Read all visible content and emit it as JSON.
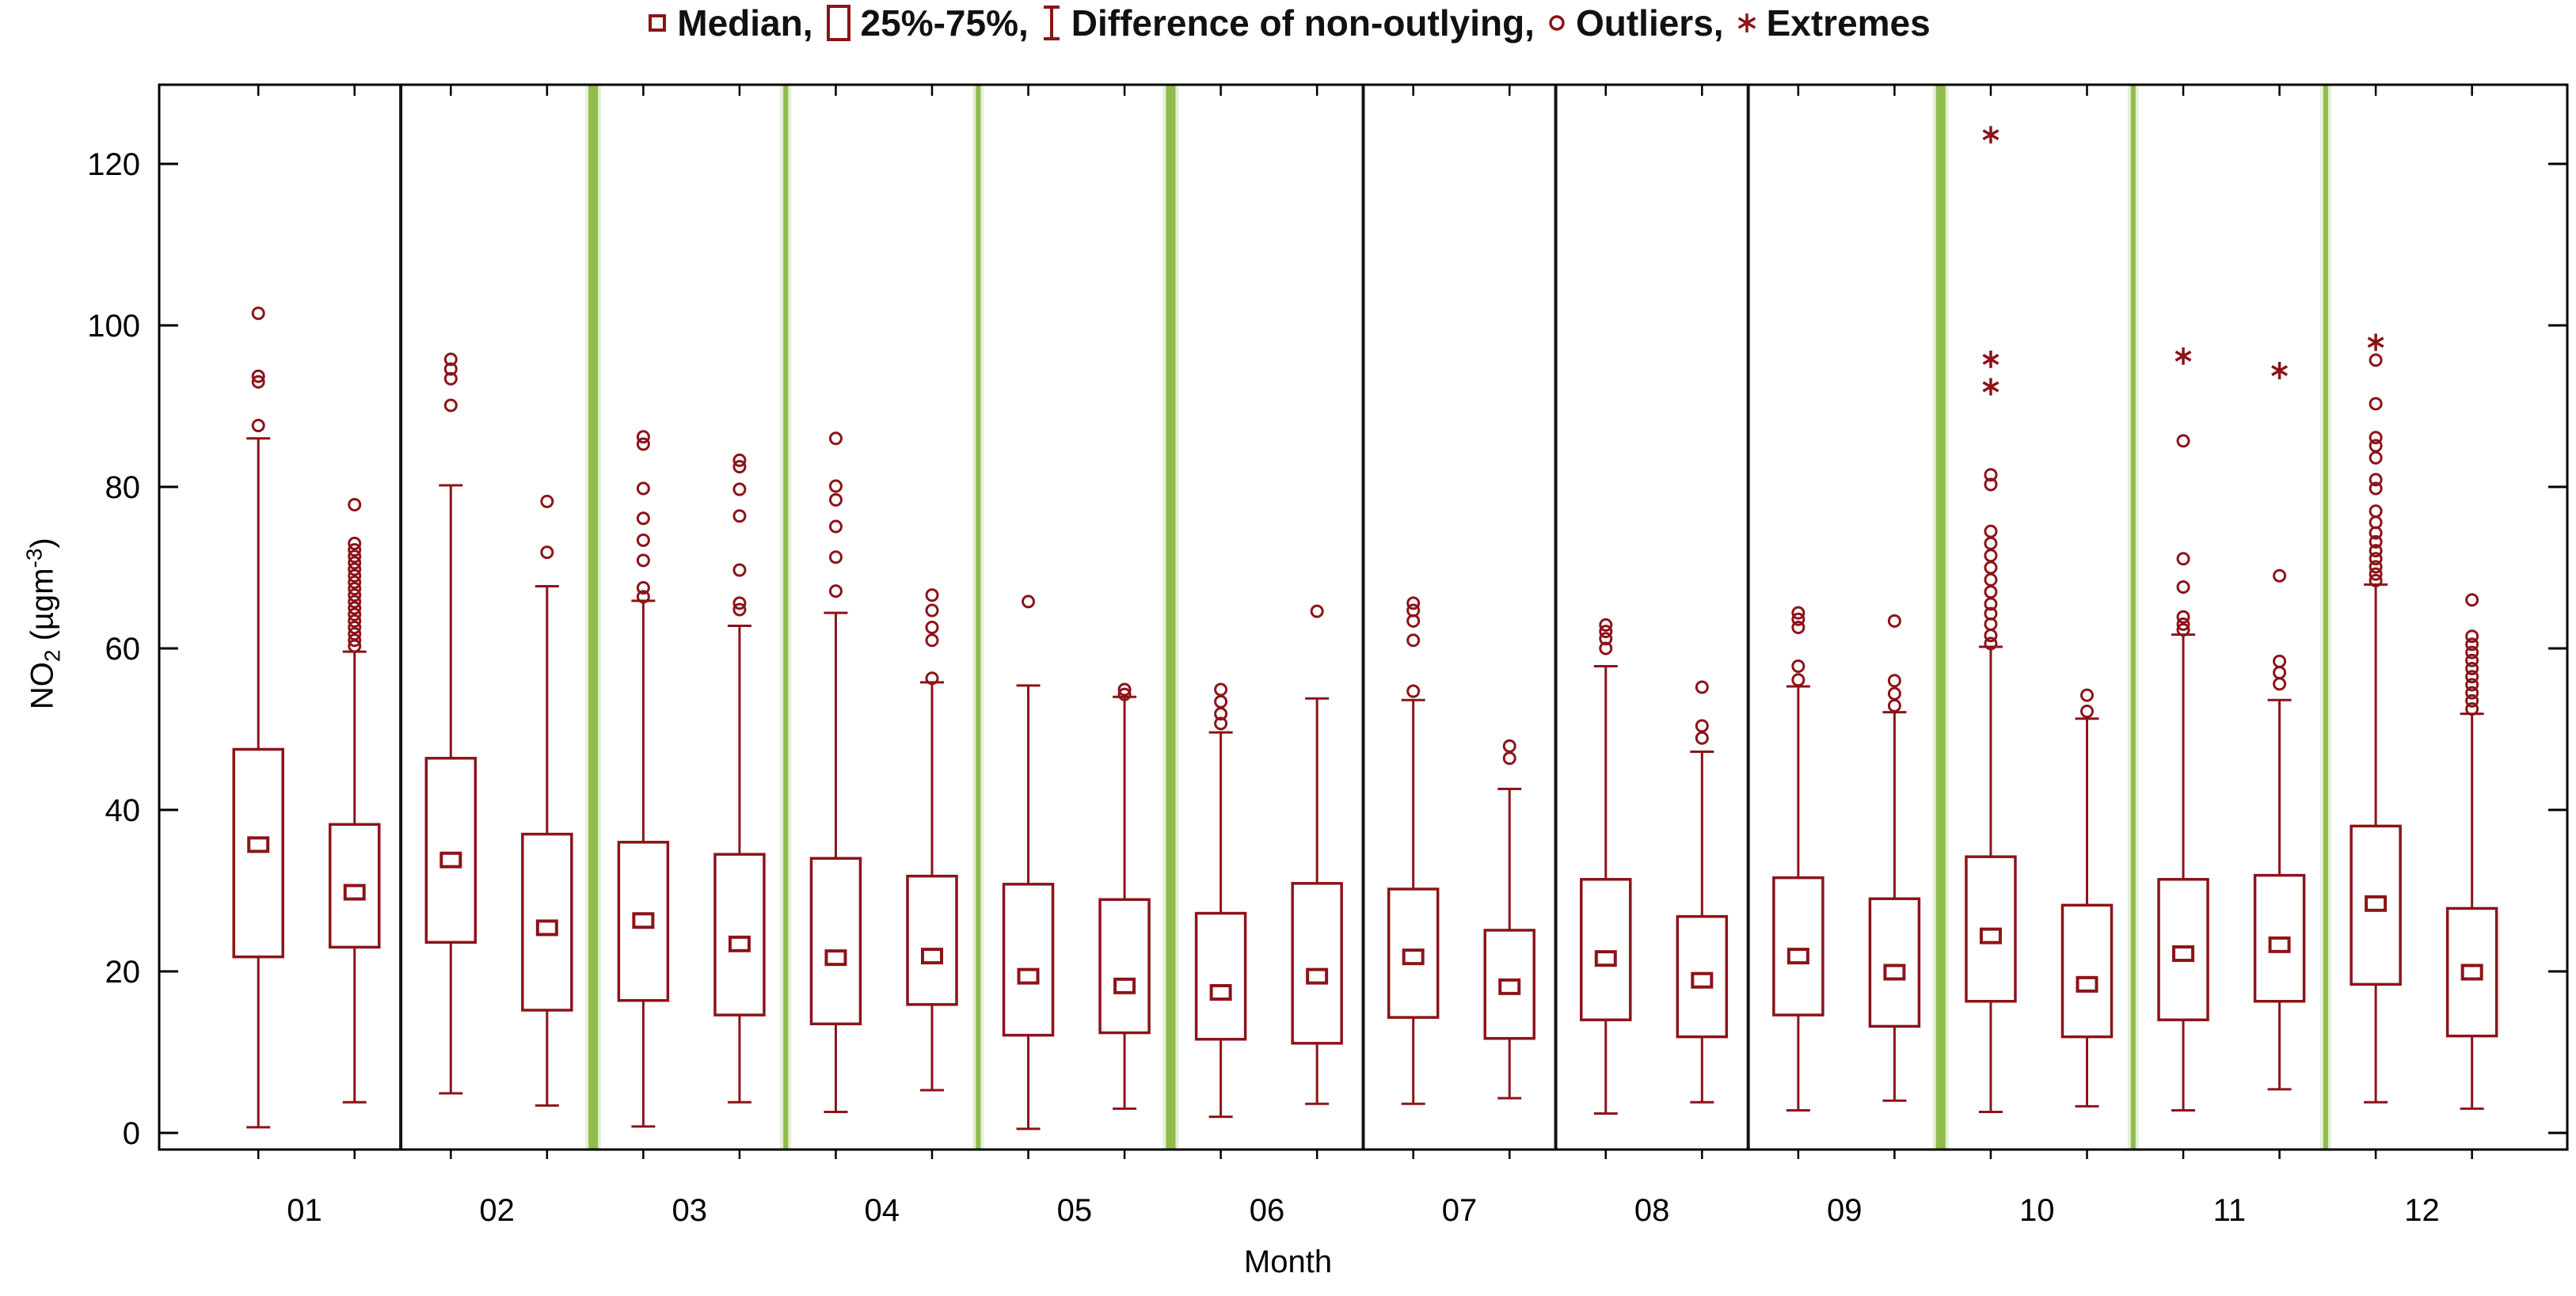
{
  "axes": {
    "y_title_html": "NO₂ (µgm⁻³)",
    "x_title": "Month"
  },
  "chart_data": {
    "type": "boxplot",
    "title": "",
    "xlabel": "Month",
    "ylabel": "NO₂ (µgm⁻³)",
    "yticks": [
      0,
      20,
      40,
      60,
      80,
      100,
      120
    ],
    "ylim": [
      -2,
      130
    ],
    "grid": false,
    "legend_position": "top-center",
    "legend_items": [
      {
        "label": "Median,",
        "symbol": "median-square"
      },
      {
        "label": "25%-75%,",
        "symbol": "iqr-box"
      },
      {
        "label": "Difference of non-outlying,",
        "symbol": "whisker-ibeam"
      },
      {
        "label": "Outliers,",
        "symbol": "outlier-circle"
      },
      {
        "label": "Extremes",
        "symbol": "extreme-asterisk"
      }
    ],
    "categories": [
      "01",
      "02",
      "03",
      "04",
      "05",
      "06",
      "07",
      "08",
      "09",
      "10",
      "11",
      "12"
    ],
    "series_per_category": 2,
    "boxes": [
      {
        "month": "01",
        "pos": "A",
        "low": 0.7,
        "q1": 21.8,
        "median": 35.7,
        "q3": 47.5,
        "high": 86.0,
        "outliers": [
          101.5,
          93.7,
          93.0,
          87.6
        ],
        "extremes": []
      },
      {
        "month": "01",
        "pos": "B",
        "low": 3.8,
        "q1": 23.0,
        "median": 29.8,
        "q3": 38.2,
        "high": 59.6,
        "outliers": [
          77.8,
          73.0,
          72.2,
          71.4,
          70.6,
          69.8,
          69.0,
          68.2,
          67.4,
          66.6,
          65.8,
          65.0,
          64.2,
          63.4,
          62.6,
          61.8,
          61.0,
          60.3
        ],
        "extremes": []
      },
      {
        "month": "02",
        "pos": "A",
        "low": 4.9,
        "q1": 23.6,
        "median": 33.8,
        "q3": 46.4,
        "high": 80.2,
        "outliers": [
          95.8,
          94.6,
          93.4,
          90.1
        ],
        "extremes": []
      },
      {
        "month": "02",
        "pos": "B",
        "low": 3.4,
        "q1": 15.2,
        "median": 25.4,
        "q3": 37.0,
        "high": 67.7,
        "outliers": [
          78.2,
          71.9
        ],
        "extremes": []
      },
      {
        "month": "03",
        "pos": "A",
        "low": 0.8,
        "q1": 16.4,
        "median": 26.3,
        "q3": 36.0,
        "high": 65.9,
        "outliers": [
          86.2,
          85.3,
          79.8,
          76.1,
          73.4,
          70.9,
          67.5,
          66.4
        ],
        "extremes": []
      },
      {
        "month": "03",
        "pos": "B",
        "low": 3.8,
        "q1": 14.6,
        "median": 23.4,
        "q3": 34.5,
        "high": 62.8,
        "outliers": [
          83.3,
          82.5,
          79.7,
          76.4,
          69.7,
          65.6,
          64.8
        ],
        "extremes": []
      },
      {
        "month": "04",
        "pos": "A",
        "low": 2.6,
        "q1": 13.5,
        "median": 21.7,
        "q3": 34.0,
        "high": 64.4,
        "outliers": [
          86.0,
          80.1,
          78.4,
          75.1,
          71.3,
          67.1
        ],
        "extremes": []
      },
      {
        "month": "04",
        "pos": "B",
        "low": 5.3,
        "q1": 15.9,
        "median": 21.9,
        "q3": 31.8,
        "high": 55.8,
        "outliers": [
          66.6,
          64.7,
          62.6,
          61.0,
          56.3
        ],
        "extremes": []
      },
      {
        "month": "05",
        "pos": "A",
        "low": 0.5,
        "q1": 12.1,
        "median": 19.4,
        "q3": 30.8,
        "high": 55.4,
        "outliers": [
          65.8
        ],
        "extremes": []
      },
      {
        "month": "05",
        "pos": "B",
        "low": 3.0,
        "q1": 12.4,
        "median": 18.2,
        "q3": 28.9,
        "high": 54.0,
        "outliers": [
          54.9,
          54.3
        ],
        "extremes": []
      },
      {
        "month": "06",
        "pos": "A",
        "low": 2.0,
        "q1": 11.6,
        "median": 17.4,
        "q3": 27.2,
        "high": 49.6,
        "outliers": [
          54.9,
          53.4,
          51.9,
          50.7
        ],
        "extremes": []
      },
      {
        "month": "06",
        "pos": "B",
        "low": 3.6,
        "q1": 11.1,
        "median": 19.4,
        "q3": 30.9,
        "high": 53.8,
        "outliers": [
          64.6
        ],
        "extremes": []
      },
      {
        "month": "07",
        "pos": "A",
        "low": 3.6,
        "q1": 14.3,
        "median": 21.8,
        "q3": 30.2,
        "high": 53.6,
        "outliers": [
          65.6,
          64.7,
          63.4,
          61.0,
          54.7
        ],
        "extremes": []
      },
      {
        "month": "07",
        "pos": "B",
        "low": 4.3,
        "q1": 11.7,
        "median": 18.1,
        "q3": 25.1,
        "high": 42.6,
        "outliers": [
          47.9,
          46.4
        ],
        "extremes": []
      },
      {
        "month": "08",
        "pos": "A",
        "low": 2.4,
        "q1": 14.0,
        "median": 21.6,
        "q3": 31.4,
        "high": 57.8,
        "outliers": [
          62.9,
          62.1,
          61.2,
          60.0
        ],
        "extremes": []
      },
      {
        "month": "08",
        "pos": "B",
        "low": 3.8,
        "q1": 11.9,
        "median": 18.9,
        "q3": 26.8,
        "high": 47.2,
        "outliers": [
          55.2,
          50.4,
          48.9
        ],
        "extremes": []
      },
      {
        "month": "09",
        "pos": "A",
        "low": 2.8,
        "q1": 14.6,
        "median": 21.9,
        "q3": 31.6,
        "high": 55.3,
        "outliers": [
          64.4,
          63.6,
          62.6,
          57.8,
          56.1
        ],
        "extremes": []
      },
      {
        "month": "09",
        "pos": "B",
        "low": 4.0,
        "q1": 13.2,
        "median": 19.9,
        "q3": 29.0,
        "high": 52.1,
        "outliers": [
          63.4,
          56.0,
          54.4,
          52.9
        ],
        "extremes": []
      },
      {
        "month": "10",
        "pos": "A",
        "low": 2.6,
        "q1": 16.3,
        "median": 24.4,
        "q3": 34.2,
        "high": 60.2,
        "outliers": [
          81.5,
          80.3,
          74.5,
          73.0,
          71.5,
          70.0,
          68.5,
          67.0,
          65.5,
          64.3,
          63.0,
          61.6,
          60.6
        ],
        "extremes": [
          123.6,
          95.8,
          92.4
        ]
      },
      {
        "month": "10",
        "pos": "B",
        "low": 3.3,
        "q1": 11.9,
        "median": 18.4,
        "q3": 28.2,
        "high": 51.3,
        "outliers": [
          54.2,
          52.2
        ],
        "extremes": []
      },
      {
        "month": "11",
        "pos": "A",
        "low": 2.8,
        "q1": 14.0,
        "median": 22.2,
        "q3": 31.4,
        "high": 61.7,
        "outliers": [
          85.7,
          71.1,
          67.6,
          63.9,
          63.0,
          62.3
        ],
        "extremes": [
          96.2
        ]
      },
      {
        "month": "11",
        "pos": "B",
        "low": 5.4,
        "q1": 16.3,
        "median": 23.3,
        "q3": 31.9,
        "high": 53.6,
        "outliers": [
          69.0,
          58.4,
          57.0,
          55.6
        ],
        "extremes": [
          94.4
        ]
      },
      {
        "month": "12",
        "pos": "A",
        "low": 3.8,
        "q1": 18.4,
        "median": 28.4,
        "q3": 38.0,
        "high": 67.9,
        "outliers": [
          95.7,
          90.3,
          86.1,
          85.1,
          83.6,
          80.9,
          79.8,
          77.0,
          75.6,
          74.3,
          73.2,
          72.1,
          71.1,
          70.1,
          69.2,
          68.4
        ],
        "extremes": [
          97.9
        ]
      },
      {
        "month": "12",
        "pos": "B",
        "low": 3.0,
        "q1": 12.0,
        "median": 19.9,
        "q3": 27.8,
        "high": 51.9,
        "outliers": [
          66.0,
          61.5,
          60.5,
          59.5,
          58.5,
          57.5,
          56.5,
          55.5,
          54.5,
          53.5,
          52.5
        ],
        "extremes": []
      }
    ],
    "separators": [
      {
        "after": "01",
        "color": "black",
        "weight": "thin"
      },
      {
        "after": "02",
        "color": "green",
        "weight": "thick"
      },
      {
        "after": "03",
        "color": "green",
        "weight": "thin"
      },
      {
        "after": "04",
        "color": "green",
        "weight": "thin"
      },
      {
        "after": "05",
        "color": "green",
        "weight": "thick"
      },
      {
        "after": "06",
        "color": "black",
        "weight": "thin"
      },
      {
        "after": "07",
        "color": "black",
        "weight": "thin"
      },
      {
        "after": "08",
        "color": "black",
        "weight": "thin"
      },
      {
        "after": "09",
        "color": "green",
        "weight": "thick"
      },
      {
        "after": "10",
        "color": "green",
        "weight": "thin"
      },
      {
        "after": "11",
        "color": "green",
        "weight": "thin"
      }
    ],
    "colors": {
      "series": "#8B1419",
      "green_line": "#8FBC4C",
      "green_halo": "#E4EFD6",
      "black_line": "#141414",
      "frame": "#000000",
      "text": "#000000"
    }
  }
}
